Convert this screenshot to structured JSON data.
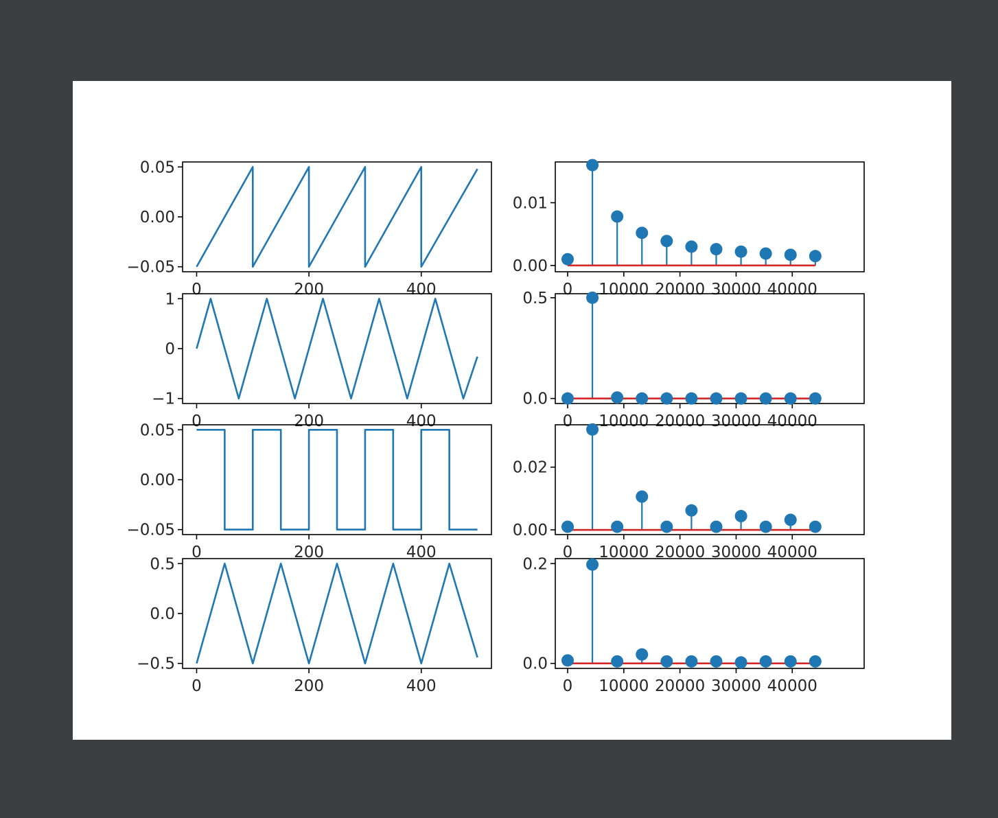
{
  "colors": {
    "background": "#3b3f42",
    "figure": "#ffffff",
    "line": "#1f77b4",
    "stem": "#1f77b4",
    "baseline": "#d62728",
    "axis": "#000000",
    "text": "#262626"
  },
  "chart_data": [
    {
      "type": "line",
      "waveform": "sawtooth",
      "xlim": [
        -25,
        525
      ],
      "ylim": [
        -0.055,
        0.055
      ],
      "xticks": [
        0,
        200,
        400
      ],
      "xticklabels": [
        "0",
        "200",
        "400"
      ],
      "yticks": [
        -0.05,
        0.0,
        0.05
      ],
      "yticklabels": [
        "−0.05",
        "0.00",
        "0.05"
      ],
      "x": [
        0,
        100,
        100,
        200,
        200,
        300,
        300,
        400,
        400,
        500
      ],
      "y": [
        -0.05,
        0.05,
        -0.05,
        0.05,
        -0.05,
        0.05,
        -0.05,
        0.05,
        -0.05,
        0.048
      ]
    },
    {
      "type": "stem",
      "waveform": "sawtooth spectrum",
      "xlim": [
        -2200,
        52800
      ],
      "ylim": [
        -0.001,
        0.0165
      ],
      "xticks": [
        0,
        10000,
        20000,
        30000,
        40000
      ],
      "xticklabels": [
        "0",
        "10000",
        "20000",
        "30000",
        "40000"
      ],
      "yticks": [
        0.0,
        0.01
      ],
      "yticklabels": [
        "0.00",
        "0.01"
      ],
      "x": [
        0,
        4410,
        8820,
        13230,
        17640,
        22050,
        26460,
        30870,
        35280,
        39690,
        44100
      ],
      "y": [
        0.001,
        0.016,
        0.0078,
        0.0052,
        0.0039,
        0.003,
        0.0026,
        0.0022,
        0.0019,
        0.0017,
        0.0015
      ]
    },
    {
      "type": "line",
      "waveform": "sine",
      "xlim": [
        -25,
        525
      ],
      "ylim": [
        -1.1,
        1.1
      ],
      "xticks": [
        0,
        200,
        400
      ],
      "xticklabels": [
        "0",
        "200",
        "400"
      ],
      "yticks": [
        -1,
        0,
        1
      ],
      "yticklabels": [
        "−1",
        "0",
        "1"
      ],
      "x": [
        0,
        25,
        50,
        75,
        100,
        125,
        150,
        175,
        200,
        225,
        250,
        275,
        300,
        325,
        350,
        375,
        400,
        425,
        450,
        475,
        500
      ],
      "y": [
        0,
        1,
        0,
        -1,
        0,
        1,
        0,
        -1,
        0,
        1,
        0,
        -1,
        0,
        1,
        0,
        -1,
        0,
        1,
        0,
        -1,
        -0.16
      ]
    },
    {
      "type": "stem",
      "waveform": "sine spectrum",
      "xlim": [
        -2200,
        52800
      ],
      "ylim": [
        -0.025,
        0.52
      ],
      "xticks": [
        0,
        10000,
        20000,
        30000,
        40000
      ],
      "xticklabels": [
        "0",
        "10000",
        "20000",
        "30000",
        "40000"
      ],
      "yticks": [
        0.0,
        0.5
      ],
      "yticklabels": [
        "0.0",
        "0.5"
      ],
      "x": [
        0,
        4410,
        8820,
        13230,
        17640,
        22050,
        26460,
        30870,
        35280,
        39690,
        44100
      ],
      "y": [
        0,
        0.5,
        0.005,
        0,
        0,
        0,
        0,
        0,
        0,
        0,
        0
      ]
    },
    {
      "type": "line",
      "waveform": "square",
      "xlim": [
        -25,
        525
      ],
      "ylim": [
        -0.055,
        0.055
      ],
      "xticks": [
        0,
        200,
        400
      ],
      "xticklabels": [
        "0",
        "200",
        "400"
      ],
      "yticks": [
        -0.05,
        0.0,
        0.05
      ],
      "yticklabels": [
        "−0.05",
        "0.00",
        "0.05"
      ],
      "x": [
        0,
        50,
        50,
        100,
        100,
        150,
        150,
        200,
        200,
        250,
        250,
        300,
        300,
        350,
        350,
        400,
        400,
        450,
        450,
        500
      ],
      "y": [
        0.05,
        0.05,
        -0.05,
        -0.05,
        0.05,
        0.05,
        -0.05,
        -0.05,
        0.05,
        0.05,
        -0.05,
        -0.05,
        0.05,
        0.05,
        -0.05,
        -0.05,
        0.05,
        0.05,
        -0.05,
        -0.05
      ]
    },
    {
      "type": "stem",
      "waveform": "square spectrum",
      "xlim": [
        -2200,
        52800
      ],
      "ylim": [
        -0.0015,
        0.0335
      ],
      "xticks": [
        0,
        10000,
        20000,
        30000,
        40000
      ],
      "xticklabels": [
        "0",
        "10000",
        "20000",
        "30000",
        "40000"
      ],
      "yticks": [
        0.0,
        0.02
      ],
      "yticklabels": [
        "0.00",
        "0.02"
      ],
      "x": [
        0,
        4410,
        8820,
        13230,
        17640,
        22050,
        26460,
        30870,
        35280,
        39690,
        44100
      ],
      "y": [
        0.001,
        0.032,
        0.001,
        0.0106,
        0.001,
        0.0062,
        0.001,
        0.0044,
        0.001,
        0.0032,
        0.001
      ]
    },
    {
      "type": "line",
      "waveform": "triangle",
      "xlim": [
        -25,
        525
      ],
      "ylim": [
        -0.55,
        0.55
      ],
      "xticks": [
        0,
        200,
        400
      ],
      "xticklabels": [
        "0",
        "200",
        "400"
      ],
      "yticks": [
        -0.5,
        0.0,
        0.5
      ],
      "yticklabels": [
        "−0.5",
        "0.0",
        "0.5"
      ],
      "x": [
        0,
        50,
        100,
        150,
        200,
        250,
        300,
        350,
        400,
        450,
        500
      ],
      "y": [
        -0.5,
        0.5,
        -0.5,
        0.5,
        -0.5,
        0.5,
        -0.5,
        0.5,
        -0.5,
        0.5,
        -0.44
      ]
    },
    {
      "type": "stem",
      "waveform": "triangle spectrum",
      "xlim": [
        -2200,
        52800
      ],
      "ylim": [
        -0.01,
        0.21
      ],
      "xticks": [
        0,
        10000,
        20000,
        30000,
        40000
      ],
      "xticklabels": [
        "0",
        "10000",
        "20000",
        "30000",
        "40000"
      ],
      "yticks": [
        0.0,
        0.2
      ],
      "yticklabels": [
        "0.0",
        "0.2"
      ],
      "x": [
        0,
        4410,
        8820,
        13230,
        17640,
        22050,
        26460,
        30870,
        35280,
        39690,
        44100
      ],
      "y": [
        0.006,
        0.198,
        0.004,
        0.018,
        0.004,
        0.004,
        0.004,
        0.002,
        0.004,
        0.004,
        0.004
      ]
    }
  ]
}
